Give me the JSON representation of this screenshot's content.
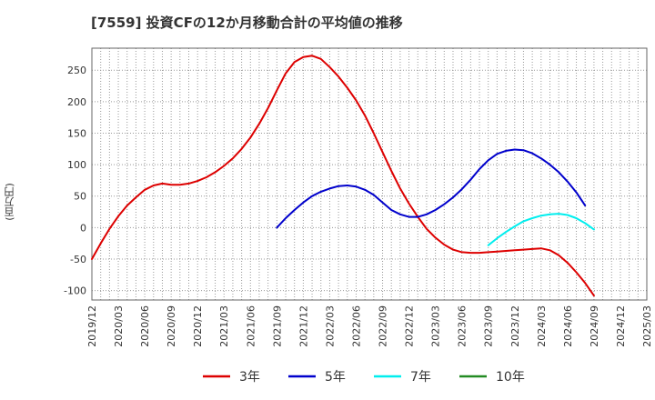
{
  "chart_data": {
    "type": "line",
    "title": "[7559]  投資CFの12か月移動合計の平均値の推移",
    "ylabel": "(百万円)",
    "xlabel": "",
    "ylim": [
      -115,
      285
    ],
    "yticks": [
      -100,
      -50,
      0,
      50,
      100,
      150,
      200,
      250
    ],
    "x_tick_labels": [
      "2019/12",
      "2020/03",
      "2020/06",
      "2020/09",
      "2020/12",
      "2021/03",
      "2021/06",
      "2021/09",
      "2021/12",
      "2022/03",
      "2022/06",
      "2022/09",
      "2022/12",
      "2023/03",
      "2023/06",
      "2023/09",
      "2023/12",
      "2024/03",
      "2024/06",
      "2024/09",
      "2024/12",
      "2025/03"
    ],
    "grid": true,
    "legend_position": "bottom",
    "series": [
      {
        "name": "3年",
        "color": "#dd0000",
        "x": [
          "2019/12",
          "2020/01",
          "2020/02",
          "2020/03",
          "2020/04",
          "2020/05",
          "2020/06",
          "2020/07",
          "2020/08",
          "2020/09",
          "2020/10",
          "2020/11",
          "2020/12",
          "2021/01",
          "2021/02",
          "2021/03",
          "2021/04",
          "2021/05",
          "2021/06",
          "2021/07",
          "2021/08",
          "2021/09",
          "2021/10",
          "2021/11",
          "2021/12",
          "2022/01",
          "2022/02",
          "2022/03",
          "2022/04",
          "2022/05",
          "2022/06",
          "2022/07",
          "2022/08",
          "2022/09",
          "2022/10",
          "2022/11",
          "2022/12",
          "2023/01",
          "2023/02",
          "2023/03",
          "2023/04",
          "2023/05",
          "2023/06",
          "2023/07",
          "2023/08",
          "2023/09",
          "2023/10",
          "2023/11",
          "2023/12",
          "2024/01",
          "2024/02",
          "2024/03",
          "2024/04",
          "2024/05",
          "2024/06",
          "2024/07",
          "2024/08",
          "2024/09"
        ],
        "values": [
          -50,
          -25,
          -2,
          18,
          35,
          48,
          60,
          67,
          70,
          68,
          68,
          70,
          74,
          80,
          88,
          98,
          110,
          125,
          143,
          165,
          190,
          218,
          245,
          263,
          271,
          273,
          268,
          255,
          240,
          222,
          202,
          178,
          150,
          120,
          90,
          62,
          38,
          17,
          -2,
          -16,
          -27,
          -35,
          -39,
          -40,
          -40,
          -39,
          -38,
          -37,
          -36,
          -35,
          -34,
          -33,
          -36,
          -44,
          -56,
          -71,
          -88,
          -108
        ]
      },
      {
        "name": "5年",
        "color": "#0000cc",
        "x": [
          "2021/09",
          "2021/10",
          "2021/11",
          "2021/12",
          "2022/01",
          "2022/02",
          "2022/03",
          "2022/04",
          "2022/05",
          "2022/06",
          "2022/07",
          "2022/08",
          "2022/09",
          "2022/10",
          "2022/11",
          "2022/12",
          "2023/01",
          "2023/02",
          "2023/03",
          "2023/04",
          "2023/05",
          "2023/06",
          "2023/07",
          "2023/08",
          "2023/09",
          "2023/10",
          "2023/11",
          "2023/12",
          "2024/01",
          "2024/02",
          "2024/03",
          "2024/04",
          "2024/05",
          "2024/06",
          "2024/07",
          "2024/08",
          "2024/09"
        ],
        "values": [
          0,
          15,
          28,
          40,
          50,
          57,
          62,
          66,
          67,
          65,
          60,
          52,
          40,
          28,
          21,
          17,
          17,
          21,
          28,
          37,
          48,
          61,
          76,
          93,
          107,
          117,
          122,
          124,
          123,
          118,
          110,
          100,
          88,
          73,
          56,
          35,
          null
        ]
      },
      {
        "name": "7年",
        "color": "#00eeee",
        "x": [
          "2023/09",
          "2023/10",
          "2023/11",
          "2023/12",
          "2024/01",
          "2024/02",
          "2024/03",
          "2024/04",
          "2024/05",
          "2024/06",
          "2024/07",
          "2024/08",
          "2024/09"
        ],
        "values": [
          -28,
          -17,
          -7,
          2,
          10,
          15,
          19,
          21,
          22,
          20,
          15,
          7,
          -3
        ]
      },
      {
        "name": "10年",
        "color": "#228b22",
        "x": [],
        "values": []
      }
    ]
  }
}
